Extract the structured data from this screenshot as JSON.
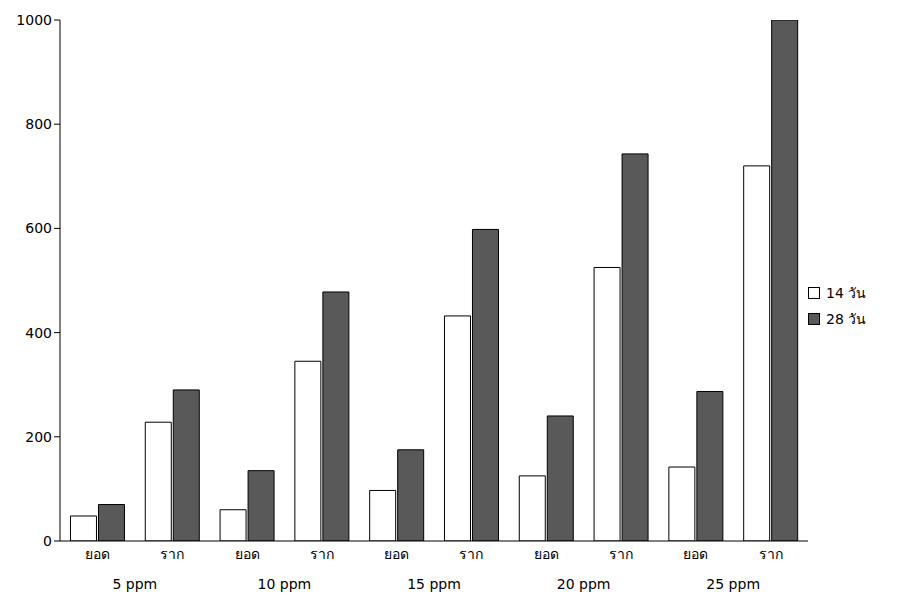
{
  "chart_data": {
    "type": "bar",
    "categories": [
      "ยอด",
      "ราก",
      "ยอด",
      "ราก",
      "ยอด",
      "ราก",
      "ยอด",
      "ราก",
      "ยอด",
      "ราก"
    ],
    "groups": [
      "5 ppm",
      "10 ppm",
      "15 ppm",
      "20 ppm",
      "25 ppm"
    ],
    "series": [
      {
        "name": "14 วัน",
        "color": "#ffffff",
        "values": [
          48,
          228,
          60,
          345,
          97,
          432,
          125,
          525,
          142,
          720
        ]
      },
      {
        "name": "28 วัน",
        "color": "#595959",
        "values": [
          70,
          290,
          135,
          478,
          175,
          598,
          240,
          743,
          287,
          1000
        ]
      }
    ],
    "ylim": [
      0,
      1000
    ],
    "yticks": [
      0,
      200,
      400,
      600,
      800,
      1000
    ],
    "grid": false,
    "legend": "right"
  }
}
